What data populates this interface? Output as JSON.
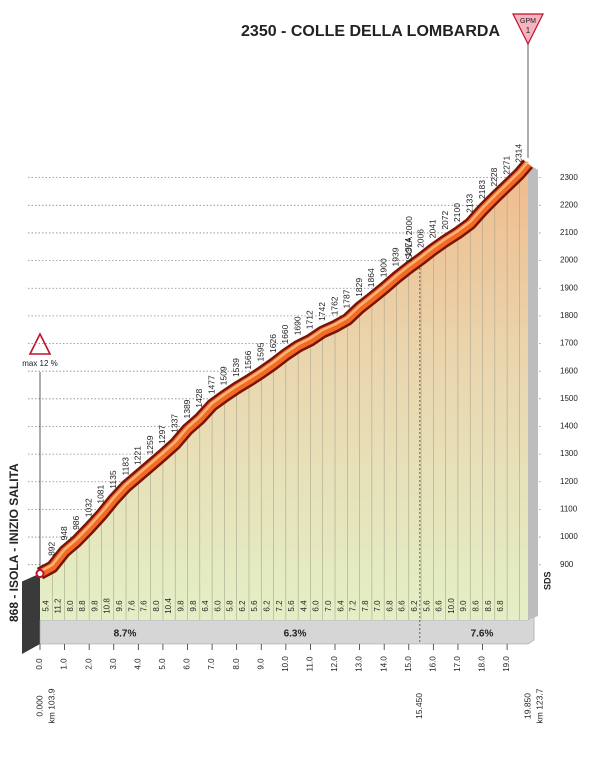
{
  "chart_data": {
    "type": "area",
    "title": "2350 - COLLE DELLA LOMBARDA",
    "gpm": {
      "text": "GPM",
      "category": "1"
    },
    "start_label": "868 - ISOLA - INIZIO SALITA",
    "max_gradient": "max 12 %",
    "waypoint": "ISOLA 2000",
    "source": "SDS",
    "color": "#f26b21",
    "x": [
      0,
      0.5,
      1,
      1.5,
      2,
      2.5,
      3,
      3.5,
      4,
      4.5,
      5,
      5.5,
      6,
      6.5,
      7,
      7.5,
      8,
      8.5,
      9,
      9.5,
      10,
      10.5,
      11,
      11.5,
      12,
      12.5,
      13,
      13.5,
      14,
      14.5,
      15,
      15.5,
      16,
      16.5,
      17,
      17.5,
      18,
      18.5,
      19,
      19.5,
      19.85
    ],
    "values": [
      868,
      892,
      948,
      986,
      1032,
      1081,
      1135,
      1183,
      1221,
      1259,
      1297,
      1337,
      1389,
      1428,
      1477,
      1509,
      1539,
      1566,
      1595,
      1626,
      1660,
      1690,
      1712,
      1742,
      1762,
      1787,
      1829,
      1864,
      1900,
      1939,
      1974,
      2006,
      2041,
      2072,
      2100,
      2133,
      2183,
      2228,
      2271,
      2314,
      2350
    ],
    "gradient_labels": [
      "5.4",
      "11.2",
      "8.0",
      "8.8",
      "9.8",
      "10.8",
      "9.6",
      "7.6",
      "7.6",
      "8.0",
      "10.4",
      "9.8",
      "9.8",
      "6.4",
      "6.0",
      "5.8",
      "6.2",
      "5.6",
      "6.2",
      "7.2",
      "5.6",
      "4.4",
      "6.0",
      "7.0",
      "6.4",
      "7.2",
      "7.8",
      "7.0",
      "6.8",
      "6.6",
      "6.2",
      "5.6",
      "6.6",
      "10.0",
      "9.0",
      "8.6",
      "8.6",
      "6.8"
    ],
    "sections": [
      "8.7%",
      "6.3%",
      "7.6%"
    ],
    "xlim": [
      0,
      19.85
    ],
    "ylim": [
      700,
      2400
    ],
    "yticks": [
      900,
      1000,
      1100,
      1200,
      1300,
      1400,
      1500,
      1600,
      1700,
      1800,
      1900,
      2000,
      2100,
      2200,
      2300
    ],
    "xticks": [
      {
        "value": 0,
        "label": "0.0"
      },
      {
        "value": 1,
        "label": "1.0"
      },
      {
        "value": 2,
        "label": "2.0"
      },
      {
        "value": 3,
        "label": "3.0"
      },
      {
        "value": 4,
        "label": "4.0"
      },
      {
        "value": 5,
        "label": "5.0"
      },
      {
        "value": 6,
        "label": "6.0"
      },
      {
        "value": 7,
        "label": "7.0"
      },
      {
        "value": 8,
        "label": "8.0"
      },
      {
        "value": 9,
        "label": "9.0"
      },
      {
        "value": 10,
        "label": "10.0"
      },
      {
        "value": 11,
        "label": "11.0"
      },
      {
        "value": 12,
        "label": "12.0"
      },
      {
        "value": 13,
        "label": "13.0"
      },
      {
        "value": 14,
        "label": "14.0"
      },
      {
        "value": 15,
        "label": "15.0"
      },
      {
        "value": 16,
        "label": "16.0"
      },
      {
        "value": 17,
        "label": "17.0"
      },
      {
        "value": 18,
        "label": "18.0"
      },
      {
        "value": 19,
        "label": "19.0"
      }
    ],
    "xmarks": [
      {
        "value": 0,
        "label": "0.000"
      },
      {
        "value": 15.45,
        "label": "15.450"
      },
      {
        "value": 19.85,
        "label": "19.850"
      }
    ],
    "km_labels": [
      "km 103.9",
      "km 123.7"
    ],
    "grid": true
  }
}
